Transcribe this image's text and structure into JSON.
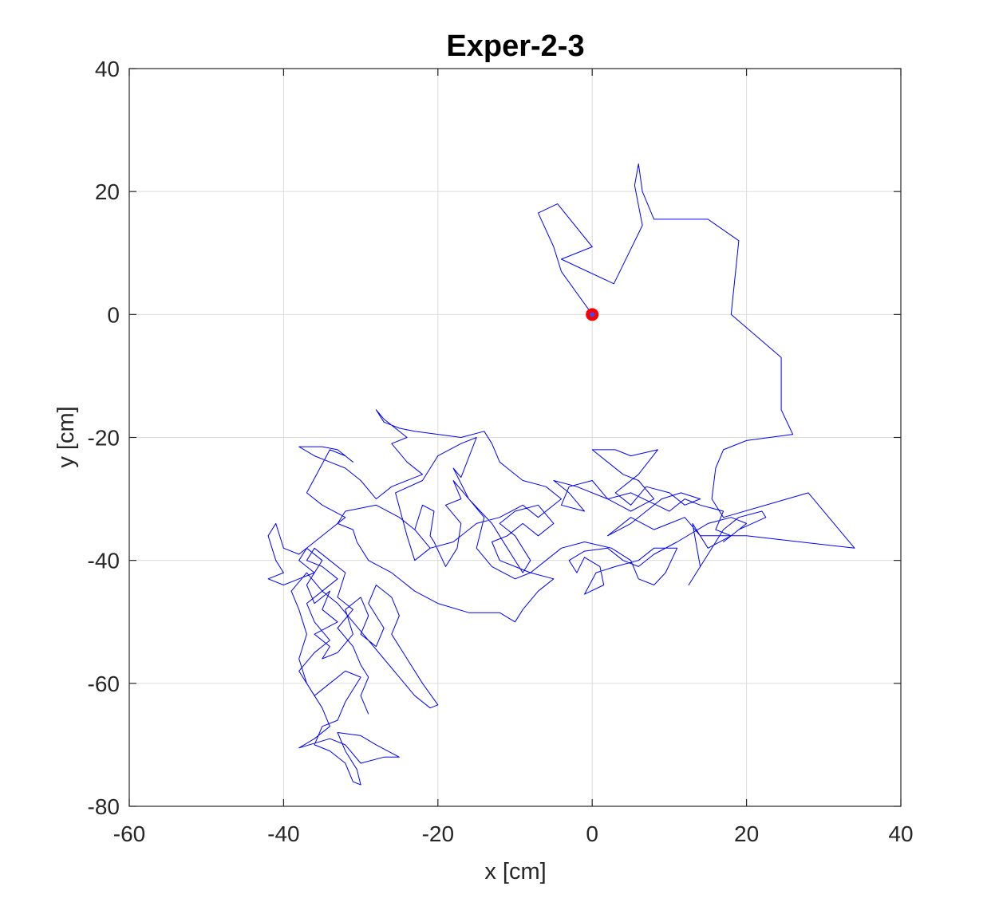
{
  "chart_data": {
    "type": "line",
    "title": "Exper-2-3",
    "xlabel": "x [cm]",
    "ylabel": "y [cm]",
    "xlim": [
      -60,
      40
    ],
    "ylim": [
      -80,
      40
    ],
    "xticks": [
      -60,
      -40,
      -20,
      0,
      20,
      40
    ],
    "yticks": [
      -80,
      -60,
      -40,
      -20,
      0,
      20,
      40
    ],
    "xtick_labels": [
      "-60",
      "-40",
      "-20",
      "0",
      "20",
      "40"
    ],
    "ytick_labels": [
      "-80",
      "-60",
      "-40",
      "-20",
      "0",
      "20",
      "40"
    ],
    "grid": true,
    "series": [
      {
        "line_color": "#0000ff",
        "points": [
          [
            0,
            0
          ],
          [
            -4,
            7
          ],
          [
            -5,
            11
          ],
          [
            -7,
            16.5
          ],
          [
            -4.5,
            18
          ],
          [
            0,
            11
          ],
          [
            -4,
            9
          ],
          [
            2.8,
            5
          ],
          [
            6.5,
            14.5
          ],
          [
            5.5,
            21
          ],
          [
            6,
            24.5
          ],
          [
            6.5,
            20
          ],
          [
            8,
            15.5
          ],
          [
            15,
            15.5
          ],
          [
            19,
            12
          ],
          [
            18,
            0
          ],
          [
            24.5,
            -7
          ],
          [
            24.5,
            -15.5
          ],
          [
            26,
            -19.5
          ],
          [
            20,
            -20.5
          ],
          [
            17,
            -22
          ],
          [
            16,
            -25
          ],
          [
            15.5,
            -30
          ],
          [
            17,
            -33
          ],
          [
            28,
            -29
          ],
          [
            34,
            -38
          ],
          [
            20,
            -36
          ],
          [
            14,
            -36
          ],
          [
            12,
            -33
          ],
          [
            10,
            -34
          ],
          [
            8,
            -35
          ],
          [
            5,
            -33
          ],
          [
            2,
            -36
          ],
          [
            5,
            -34
          ],
          [
            9,
            -30
          ],
          [
            11.5,
            -29
          ],
          [
            14,
            -30
          ],
          [
            12,
            -31
          ],
          [
            10,
            -29
          ],
          [
            7,
            -28
          ],
          [
            5,
            -31
          ],
          [
            3,
            -29
          ],
          [
            6,
            -26
          ],
          [
            8.5,
            -22
          ],
          [
            5,
            -23
          ],
          [
            3,
            -22
          ],
          [
            0,
            -22
          ],
          [
            2,
            -24
          ],
          [
            4,
            -26
          ],
          [
            6,
            -27
          ],
          [
            8,
            -30
          ],
          [
            5,
            -32
          ],
          [
            2,
            -30
          ],
          [
            0,
            -27
          ],
          [
            -3,
            -28
          ],
          [
            -4,
            -31
          ],
          [
            -1,
            -32
          ],
          [
            -3,
            -29
          ],
          [
            -5,
            -27
          ],
          [
            -2,
            -28
          ],
          [
            2,
            -30
          ],
          [
            5,
            -29
          ],
          [
            10,
            -32
          ],
          [
            12,
            -30
          ],
          [
            14,
            -31
          ],
          [
            17,
            -32
          ],
          [
            16,
            -35
          ],
          [
            18,
            -36
          ],
          [
            15,
            -38
          ],
          [
            13,
            -34
          ],
          [
            14,
            -41
          ],
          [
            12.5,
            -44
          ],
          [
            15,
            -39
          ],
          [
            17,
            -35
          ],
          [
            19,
            -33
          ],
          [
            22,
            -32
          ],
          [
            22.5,
            -33
          ],
          [
            19,
            -35
          ],
          [
            17,
            -37
          ],
          [
            20,
            -34
          ],
          [
            18,
            -33
          ],
          [
            15,
            -34
          ],
          [
            11,
            -37
          ],
          [
            8,
            -39
          ],
          [
            6,
            -41
          ],
          [
            4,
            -40
          ],
          [
            2,
            -38
          ],
          [
            -1,
            -38.5
          ],
          [
            -3,
            -40
          ],
          [
            -2,
            -42
          ],
          [
            -1,
            -39.5
          ],
          [
            1,
            -41
          ],
          [
            1.5,
            -44
          ],
          [
            -1,
            -45.5
          ],
          [
            0.5,
            -42
          ],
          [
            3,
            -41
          ],
          [
            6,
            -40
          ],
          [
            8,
            -38
          ],
          [
            11,
            -38
          ],
          [
            9.5,
            -42
          ],
          [
            8,
            -44
          ],
          [
            6,
            -43
          ],
          [
            5,
            -40
          ],
          [
            2.5,
            -38
          ],
          [
            -1,
            -37
          ],
          [
            -4,
            -38
          ],
          [
            -6,
            -40
          ],
          [
            -8,
            -42
          ],
          [
            -10,
            -43
          ],
          [
            -13,
            -41
          ],
          [
            -15,
            -38
          ],
          [
            -14,
            -33
          ],
          [
            -16,
            -30
          ],
          [
            -18,
            -27
          ],
          [
            -17,
            -30
          ],
          [
            -19,
            -31
          ],
          [
            -17,
            -34
          ],
          [
            -17.5,
            -38
          ],
          [
            -19,
            -41
          ],
          [
            -20.5,
            -37
          ],
          [
            -21,
            -36
          ],
          [
            -20.5,
            -32
          ],
          [
            -22,
            -31
          ],
          [
            -23,
            -35
          ],
          [
            -21,
            -38
          ],
          [
            -23,
            -40
          ],
          [
            -24,
            -36
          ],
          [
            -25.5,
            -29
          ],
          [
            -22,
            -27
          ],
          [
            -20,
            -23
          ],
          [
            -17,
            -21
          ],
          [
            -15,
            -20
          ],
          [
            -17,
            -26.5
          ],
          [
            -18,
            -25
          ],
          [
            -16,
            -30
          ],
          [
            -13,
            -34
          ],
          [
            -11,
            -38
          ],
          [
            -9,
            -42
          ],
          [
            -8,
            -40
          ],
          [
            -10,
            -36
          ],
          [
            -12,
            -34
          ],
          [
            -10,
            -32
          ],
          [
            -7,
            -31
          ],
          [
            -5,
            -34
          ],
          [
            -7,
            -36
          ],
          [
            -9,
            -34
          ],
          [
            -11,
            -36
          ],
          [
            -13,
            -37
          ],
          [
            -12,
            -40
          ],
          [
            -8,
            -42
          ],
          [
            -5,
            -43
          ],
          [
            -7,
            -45
          ],
          [
            -9,
            -48
          ],
          [
            -10,
            -50
          ],
          [
            -12,
            -48.5
          ],
          [
            -16,
            -48.5
          ],
          [
            -20,
            -47
          ],
          [
            -23,
            -45
          ],
          [
            -26,
            -42
          ],
          [
            -29,
            -40
          ],
          [
            -30.5,
            -37
          ],
          [
            -31,
            -35
          ],
          [
            -33,
            -34
          ],
          [
            -32,
            -32
          ],
          [
            -28,
            -31
          ],
          [
            -25,
            -33
          ],
          [
            -23,
            -35
          ],
          [
            -21,
            -38
          ],
          [
            -18,
            -37
          ],
          [
            -15,
            -34
          ],
          [
            -12,
            -33
          ],
          [
            -9,
            -31
          ],
          [
            -7,
            -33
          ],
          [
            -4,
            -30
          ],
          [
            -6,
            -28
          ],
          [
            -9,
            -27
          ],
          [
            -12,
            -24
          ],
          [
            -13,
            -21
          ],
          [
            -14,
            -19
          ],
          [
            -17,
            -20
          ],
          [
            -20,
            -19.5
          ],
          [
            -23,
            -19
          ],
          [
            -25,
            -18.5
          ],
          [
            -27,
            -17.5
          ],
          [
            -28,
            -15.5
          ],
          [
            -27,
            -17
          ],
          [
            -26,
            -18
          ],
          [
            -24,
            -20
          ],
          [
            -26,
            -21
          ],
          [
            -24,
            -24
          ],
          [
            -22,
            -26
          ],
          [
            -26,
            -28
          ],
          [
            -28,
            -30
          ],
          [
            -30,
            -27
          ],
          [
            -32,
            -25
          ],
          [
            -34,
            -24
          ],
          [
            -36,
            -23
          ],
          [
            -38,
            -21.5
          ],
          [
            -35,
            -21.5
          ],
          [
            -33,
            -22
          ],
          [
            -31,
            -24
          ],
          [
            -32,
            -23
          ],
          [
            -34,
            -22
          ],
          [
            -37,
            -29
          ],
          [
            -35,
            -31
          ],
          [
            -32,
            -33
          ],
          [
            -34,
            -35
          ],
          [
            -36,
            -37
          ],
          [
            -38,
            -39
          ],
          [
            -40,
            -38
          ],
          [
            -41,
            -34
          ],
          [
            -42,
            -36
          ],
          [
            -41,
            -40
          ],
          [
            -40,
            -42
          ],
          [
            -42,
            -43
          ],
          [
            -40,
            -44
          ],
          [
            -38,
            -43
          ],
          [
            -36,
            -42
          ],
          [
            -38,
            -40
          ],
          [
            -37,
            -38
          ],
          [
            -35,
            -40
          ],
          [
            -37,
            -44
          ],
          [
            -36,
            -47
          ],
          [
            -34,
            -45
          ],
          [
            -35,
            -48
          ],
          [
            -33,
            -50
          ],
          [
            -36,
            -52
          ],
          [
            -34,
            -54
          ],
          [
            -35,
            -56
          ],
          [
            -33,
            -55
          ],
          [
            -31,
            -52
          ],
          [
            -32,
            -48
          ],
          [
            -30,
            -46
          ],
          [
            -29,
            -49
          ],
          [
            -30,
            -52
          ],
          [
            -28,
            -54
          ],
          [
            -27,
            -51
          ],
          [
            -29,
            -47
          ],
          [
            -28,
            -44
          ],
          [
            -26,
            -46
          ],
          [
            -25,
            -49
          ],
          [
            -26,
            -52
          ],
          [
            -24,
            -56
          ],
          [
            -22,
            -60
          ],
          [
            -20,
            -63.5
          ],
          [
            -21,
            -64
          ],
          [
            -23,
            -62
          ],
          [
            -25,
            -59
          ],
          [
            -27,
            -56
          ],
          [
            -29,
            -53
          ],
          [
            -31,
            -50
          ],
          [
            -33,
            -47
          ],
          [
            -35,
            -45
          ],
          [
            -37,
            -47
          ],
          [
            -36,
            -50
          ],
          [
            -34,
            -53
          ],
          [
            -36,
            -55
          ],
          [
            -38,
            -58
          ],
          [
            -36,
            -62
          ],
          [
            -34,
            -60
          ],
          [
            -32,
            -58
          ],
          [
            -30,
            -59
          ],
          [
            -32,
            -63
          ],
          [
            -33,
            -66
          ],
          [
            -35,
            -67
          ],
          [
            -36,
            -70
          ],
          [
            -34,
            -71
          ],
          [
            -32,
            -73
          ],
          [
            -31,
            -76
          ],
          [
            -30,
            -76.5
          ],
          [
            -30.5,
            -74
          ],
          [
            -32,
            -71
          ],
          [
            -33,
            -68
          ],
          [
            -30,
            -68.5
          ],
          [
            -28,
            -70
          ],
          [
            -25,
            -72
          ],
          [
            -27,
            -72
          ],
          [
            -30,
            -73
          ],
          [
            -32,
            -70
          ],
          [
            -34,
            -69
          ],
          [
            -38,
            -70.5
          ],
          [
            -36,
            -69
          ],
          [
            -34,
            -67
          ],
          [
            -35,
            -64
          ],
          [
            -37,
            -60
          ],
          [
            -38,
            -56
          ],
          [
            -37,
            -52
          ],
          [
            -38,
            -48
          ],
          [
            -39,
            -45
          ],
          [
            -37,
            -42
          ],
          [
            -35,
            -45
          ],
          [
            -33,
            -43
          ],
          [
            -35,
            -41
          ],
          [
            -37,
            -40
          ],
          [
            -36,
            -38
          ],
          [
            -34,
            -40
          ],
          [
            -32,
            -42
          ],
          [
            -33,
            -46
          ],
          [
            -31,
            -48
          ],
          [
            -33,
            -51
          ],
          [
            -31,
            -54
          ],
          [
            -30,
            -57
          ],
          [
            -29,
            -59
          ],
          [
            -30,
            -62
          ],
          [
            -29,
            -65
          ]
        ]
      }
    ],
    "markers": [
      {
        "x": 0,
        "y": 0,
        "color": "#ff0000",
        "shape": "circle"
      }
    ]
  }
}
